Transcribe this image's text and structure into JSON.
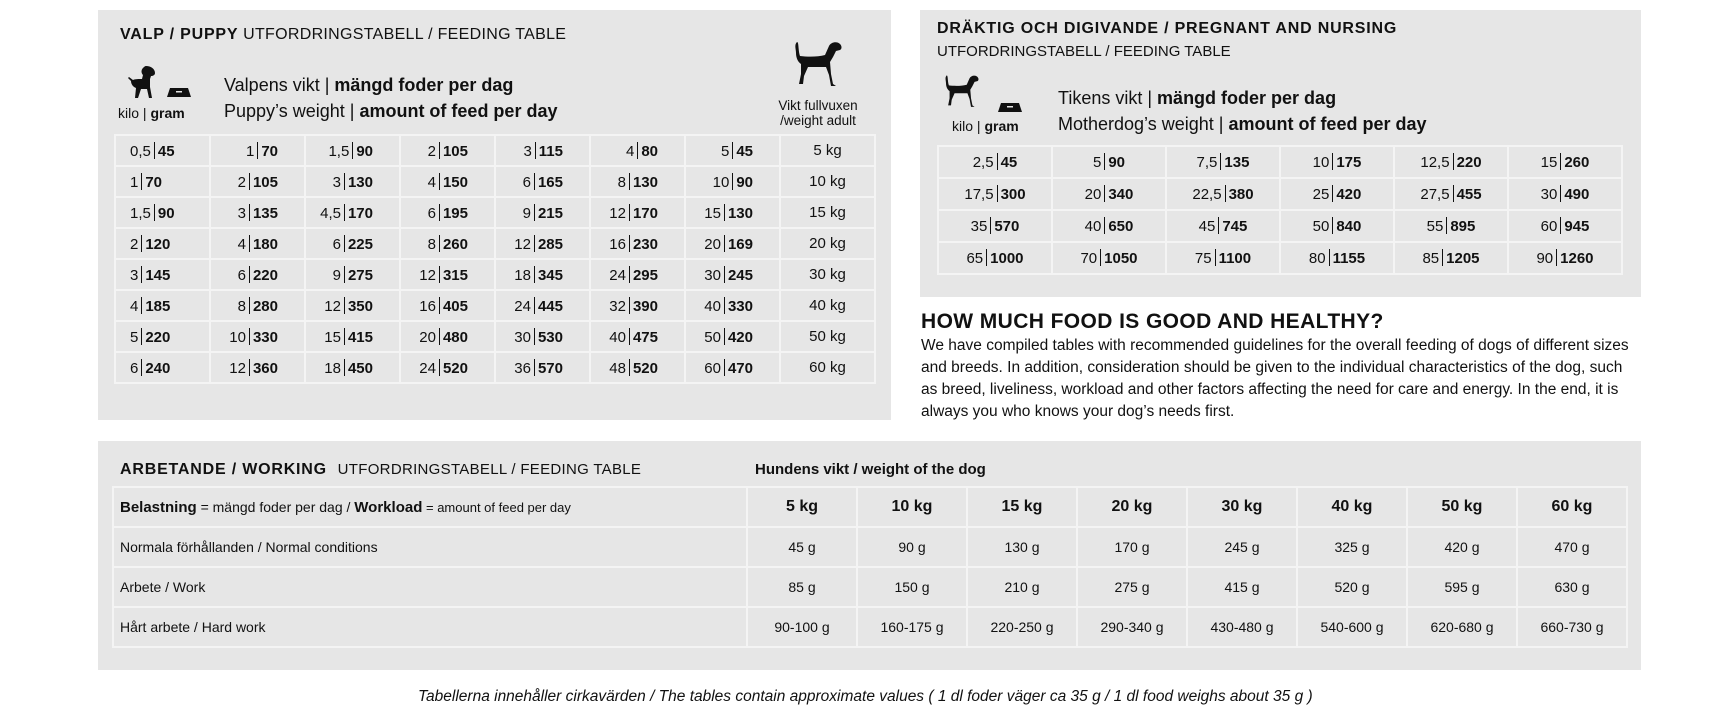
{
  "puppy": {
    "title_bold": "VALP / PUPPY",
    "title_rest": "UTFORDRINGSTABELL / FEEDING TABLE",
    "unit_kilo": "kilo",
    "unit_gram": "gram",
    "line1_light": "Valpens vikt",
    "line1_bold": "mängd foder per dag",
    "line2_light": "Puppy’s weight",
    "line2_bold": "amount of feed per day",
    "adult_label_1": "Vikt fullvuxen",
    "adult_label_2": "/weight adult",
    "rows": [
      {
        "cells": [
          [
            "0,5",
            "45"
          ],
          [
            "1",
            "70"
          ],
          [
            "1,5",
            "90"
          ],
          [
            "2",
            "105"
          ],
          [
            "3",
            "115"
          ],
          [
            "4",
            "80"
          ],
          [
            "5",
            "45"
          ]
        ],
        "adult": "5 kg"
      },
      {
        "cells": [
          [
            "1",
            "70"
          ],
          [
            "2",
            "105"
          ],
          [
            "3",
            "130"
          ],
          [
            "4",
            "150"
          ],
          [
            "6",
            "165"
          ],
          [
            "8",
            "130"
          ],
          [
            "10",
            "90"
          ]
        ],
        "adult": "10 kg"
      },
      {
        "cells": [
          [
            "1,5",
            "90"
          ],
          [
            "3",
            "135"
          ],
          [
            "4,5",
            "170"
          ],
          [
            "6",
            "195"
          ],
          [
            "9",
            "215"
          ],
          [
            "12",
            "170"
          ],
          [
            "15",
            "130"
          ]
        ],
        "adult": "15 kg"
      },
      {
        "cells": [
          [
            "2",
            "120"
          ],
          [
            "4",
            "180"
          ],
          [
            "6",
            "225"
          ],
          [
            "8",
            "260"
          ],
          [
            "12",
            "285"
          ],
          [
            "16",
            "230"
          ],
          [
            "20",
            "169"
          ]
        ],
        "adult": "20 kg"
      },
      {
        "cells": [
          [
            "3",
            "145"
          ],
          [
            "6",
            "220"
          ],
          [
            "9",
            "275"
          ],
          [
            "12",
            "315"
          ],
          [
            "18",
            "345"
          ],
          [
            "24",
            "295"
          ],
          [
            "30",
            "245"
          ]
        ],
        "adult": "30 kg"
      },
      {
        "cells": [
          [
            "4",
            "185"
          ],
          [
            "8",
            "280"
          ],
          [
            "12",
            "350"
          ],
          [
            "16",
            "405"
          ],
          [
            "24",
            "445"
          ],
          [
            "32",
            "390"
          ],
          [
            "40",
            "330"
          ]
        ],
        "adult": "40 kg"
      },
      {
        "cells": [
          [
            "5",
            "220"
          ],
          [
            "10",
            "330"
          ],
          [
            "15",
            "415"
          ],
          [
            "20",
            "480"
          ],
          [
            "30",
            "530"
          ],
          [
            "40",
            "475"
          ],
          [
            "50",
            "420"
          ]
        ],
        "adult": "50 kg"
      },
      {
        "cells": [
          [
            "6",
            "240"
          ],
          [
            "12",
            "360"
          ],
          [
            "18",
            "450"
          ],
          [
            "24",
            "520"
          ],
          [
            "36",
            "570"
          ],
          [
            "48",
            "520"
          ],
          [
            "60",
            "470"
          ]
        ],
        "adult": "60 kg"
      }
    ]
  },
  "pregnant": {
    "title": "DRÄKTIG OCH DIGIVANDE / PREGNANT AND NURSING",
    "subtitle": "UTFORDRINGSTABELL / FEEDING TABLE",
    "unit_kilo": "kilo",
    "unit_gram": "gram",
    "line1_light": "Tikens vikt",
    "line1_bold": "mängd foder per dag",
    "line2_light": "Motherdog’s weight",
    "line2_bold": "amount of feed per day",
    "rows": [
      [
        [
          "2,5",
          "45"
        ],
        [
          "5",
          "90"
        ],
        [
          "7,5",
          "135"
        ],
        [
          "10",
          "175"
        ],
        [
          "12,5",
          "220"
        ],
        [
          "15",
          "260"
        ]
      ],
      [
        [
          "17,5",
          "300"
        ],
        [
          "20",
          "340"
        ],
        [
          "22,5",
          "380"
        ],
        [
          "25",
          "420"
        ],
        [
          "27,5",
          "455"
        ],
        [
          "30",
          "490"
        ]
      ],
      [
        [
          "35",
          "570"
        ],
        [
          "40",
          "650"
        ],
        [
          "45",
          "745"
        ],
        [
          "50",
          "840"
        ],
        [
          "55",
          "895"
        ],
        [
          "60",
          "945"
        ]
      ],
      [
        [
          "65",
          "1000"
        ],
        [
          "70",
          "1050"
        ],
        [
          "75",
          "1100"
        ],
        [
          "80",
          "1155"
        ],
        [
          "85",
          "1205"
        ],
        [
          "90",
          "1260"
        ]
      ]
    ]
  },
  "info": {
    "heading": "HOW MUCH FOOD IS GOOD AND HEALTHY?",
    "text": "We have compiled tables with recommended guidelines for the overall feeding of dogs of different sizes and breeds. In addition, consideration should be given to the individual characteristics of the dog, such as breed, liveliness, workload and other factors affecting the need for care and energy. In the end, it is always you who knows your dog’s needs first."
  },
  "working": {
    "title_bold": "ARBETANDE / WORKING",
    "title_rest": "UTFORDRINGSTABELL / FEEDING TABLE",
    "weight_header": "Hundens vikt / weight of the dog",
    "header_label_b1": "Belastning",
    "header_label_1": " = mängd foder per dag / ",
    "header_label_b2": "Workload",
    "header_label_2": " = amount of feed per day",
    "weights": [
      "5 kg",
      "10 kg",
      "15 kg",
      "20 kg",
      "30 kg",
      "40 kg",
      "50 kg",
      "60 kg"
    ],
    "rows": [
      {
        "label": "Normala förhållanden / Normal conditions",
        "values": [
          "45 g",
          "90 g",
          "130 g",
          "170 g",
          "245 g",
          "325 g",
          "420 g",
          "470 g"
        ]
      },
      {
        "label": "Arbete / Work",
        "values": [
          "85 g",
          "150 g",
          "210 g",
          "275 g",
          "415 g",
          "520 g",
          "595 g",
          "630 g"
        ]
      },
      {
        "label": "Hårt arbete / Hard work",
        "values": [
          "90-100 g",
          "160-175 g",
          "220-250 g",
          "290-340 g",
          "430-480 g",
          "540-600 g",
          "620-680 g",
          "660-730 g"
        ]
      }
    ]
  },
  "footer": "Tabellerna innehåller cirkavärden / The tables contain approximate values ( 1 dl foder väger ca 35 g / 1 dl food weighs about 35 g )"
}
